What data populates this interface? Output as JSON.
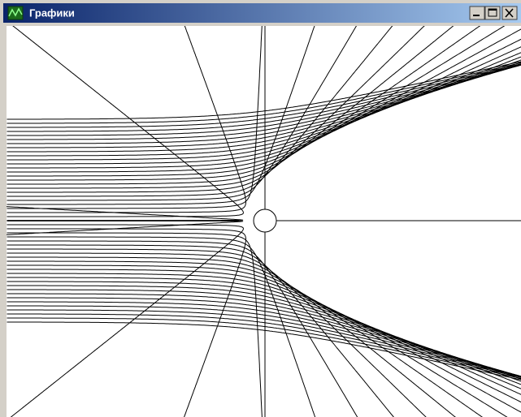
{
  "window": {
    "title": "Графики"
  }
}
